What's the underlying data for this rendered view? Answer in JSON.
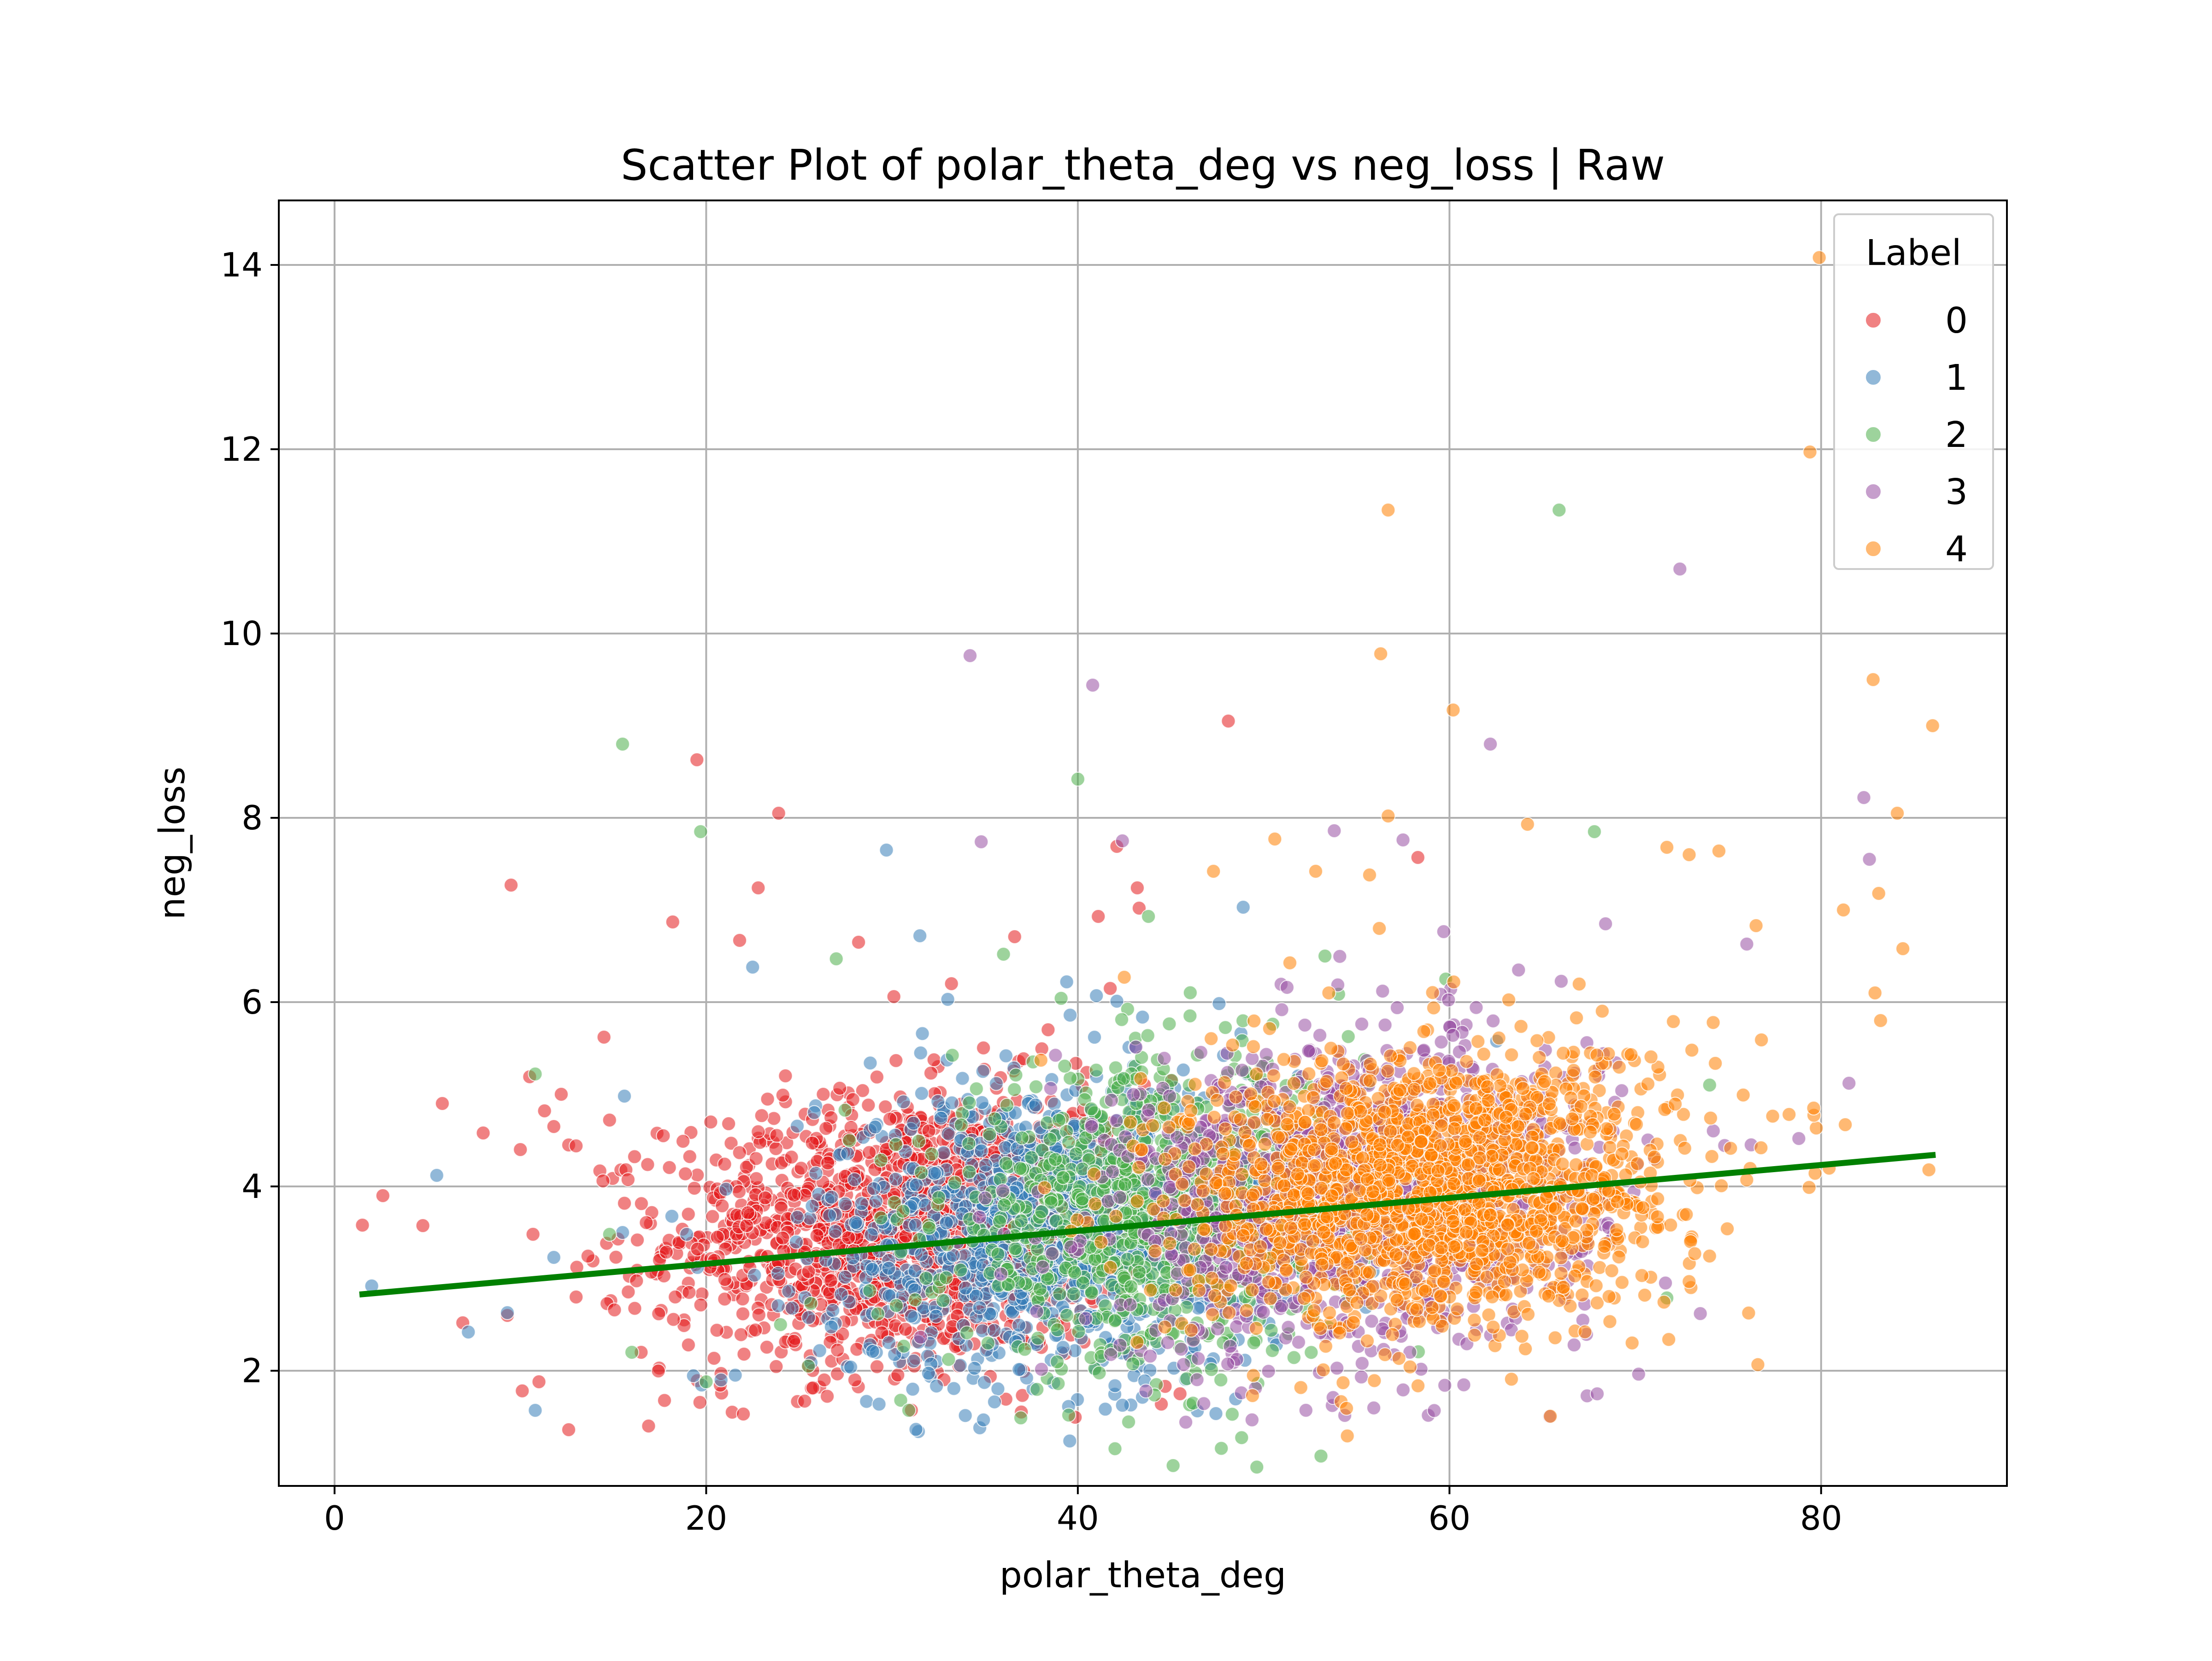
{
  "chart_data": {
    "type": "scatter",
    "title": "Scatter Plot of polar_theta_deg vs neg_loss | Raw",
    "xlabel": "polar_theta_deg",
    "ylabel": "neg_loss",
    "xlim": [
      -3,
      90
    ],
    "ylim": [
      0.75,
      14.7
    ],
    "xticks": [
      0,
      20,
      40,
      60,
      80
    ],
    "yticks": [
      2,
      4,
      6,
      8,
      10,
      12,
      14
    ],
    "xtick_labels": [
      "0",
      "20",
      "40",
      "60",
      "80"
    ],
    "ytick_labels": [
      "2",
      "4",
      "6",
      "8",
      "10",
      "12",
      "14"
    ],
    "grid": true,
    "legend": {
      "title": "Label",
      "placement": "top-right",
      "entries": [
        "0",
        "1",
        "2",
        "3",
        "4"
      ]
    },
    "series": [
      {
        "name": "0",
        "color": "#e41a1c",
        "cluster": {
          "x_mean": 31,
          "x_sd": 6.5,
          "y_mean": 3.55,
          "y_sd": 0.72,
          "n": 1500
        },
        "points": [
          [
            1.5,
            3.58
          ],
          [
            2.6,
            3.9
          ],
          [
            5.8,
            4.9
          ],
          [
            6.9,
            2.52
          ],
          [
            8,
            4.58
          ],
          [
            9.3,
            2.6
          ],
          [
            9.5,
            7.27
          ],
          [
            10,
            4.4
          ],
          [
            10.5,
            5.19
          ],
          [
            11,
            1.88
          ],
          [
            11.3,
            4.82
          ],
          [
            11.8,
            4.65
          ],
          [
            12.2,
            5.0
          ],
          [
            12.6,
            1.36
          ],
          [
            12.6,
            4.45
          ],
          [
            13,
            4.44
          ],
          [
            13,
            2.8
          ],
          [
            14.5,
            5.62
          ],
          [
            14.8,
            4.72
          ],
          [
            16.5,
            2.2
          ],
          [
            16.9,
            1.4
          ],
          [
            18.2,
            6.87
          ],
          [
            19.5,
            8.63
          ],
          [
            20.8,
            1.97
          ],
          [
            21.4,
            1.55
          ],
          [
            21.8,
            6.67
          ],
          [
            22,
            1.53
          ],
          [
            22.8,
            7.24
          ],
          [
            23.9,
            8.05
          ],
          [
            25.3,
            1.67
          ],
          [
            26.3,
            5.0
          ],
          [
            28,
            1.9
          ],
          [
            28.2,
            6.65
          ],
          [
            30.1,
            6.06
          ],
          [
            33.2,
            6.2
          ],
          [
            36.6,
            6.71
          ],
          [
            38.4,
            5.7
          ],
          [
            41.1,
            6.93
          ],
          [
            42.1,
            7.69
          ],
          [
            43.2,
            7.24
          ],
          [
            43.3,
            7.02
          ],
          [
            44.7,
            1.83
          ],
          [
            45.5,
            1.75
          ],
          [
            48.1,
            9.05
          ],
          [
            58.3,
            7.57
          ]
        ]
      },
      {
        "name": "1",
        "color": "#377eb8",
        "cluster": {
          "x_mean": 39,
          "x_sd": 6.5,
          "y_mean": 3.55,
          "y_sd": 0.8,
          "n": 1200
        },
        "points": [
          [
            2,
            2.92
          ],
          [
            5.5,
            4.12
          ],
          [
            7.2,
            2.42
          ],
          [
            9.3,
            2.63
          ],
          [
            10.8,
            1.57
          ],
          [
            11.8,
            3.23
          ],
          [
            15.5,
            3.5
          ],
          [
            15.6,
            4.98
          ],
          [
            20.8,
            1.9
          ],
          [
            22.5,
            6.38
          ],
          [
            29.7,
            7.65
          ],
          [
            31.5,
            6.72
          ],
          [
            33,
            6.03
          ],
          [
            38.7,
            1.87
          ],
          [
            39.4,
            6.22
          ],
          [
            41,
            6.07
          ],
          [
            42.1,
            6.01
          ],
          [
            48.9,
            7.03
          ],
          [
            43.6,
            1.89
          ]
        ]
      },
      {
        "name": "2",
        "color": "#4daf4a",
        "cluster": {
          "x_mean": 44,
          "x_sd": 5.5,
          "y_mean": 3.7,
          "y_sd": 0.8,
          "n": 900
        },
        "points": [
          [
            10.8,
            5.22
          ],
          [
            14.8,
            3.48
          ],
          [
            15.5,
            8.8
          ],
          [
            16,
            2.2
          ],
          [
            19.7,
            7.85
          ],
          [
            20,
            1.88
          ],
          [
            24,
            2.5
          ],
          [
            25.5,
            2.05
          ],
          [
            27,
            6.47
          ],
          [
            36,
            6.52
          ],
          [
            40,
            8.42
          ],
          [
            43.8,
            6.93
          ],
          [
            53.3,
            6.5
          ],
          [
            59.8,
            6.25
          ],
          [
            65.9,
            11.34
          ],
          [
            67.8,
            7.85
          ],
          [
            71.7,
            2.79
          ],
          [
            74,
            5.1
          ]
        ]
      },
      {
        "name": "3",
        "color": "#984ea3",
        "cluster": {
          "x_mean": 55,
          "x_sd": 6.5,
          "y_mean": 3.9,
          "y_sd": 0.85,
          "n": 1200
        },
        "points": [
          [
            34.2,
            9.76
          ],
          [
            34.8,
            7.74
          ],
          [
            40.8,
            9.44
          ],
          [
            42.4,
            7.75
          ],
          [
            48.8,
            1.76
          ],
          [
            53.8,
            7.86
          ],
          [
            57.5,
            7.76
          ],
          [
            62.2,
            8.8
          ],
          [
            68.4,
            6.85
          ],
          [
            72.4,
            10.7
          ],
          [
            73.5,
            2.62
          ],
          [
            76,
            6.63
          ],
          [
            78.8,
            4.52
          ],
          [
            81.5,
            5.12
          ],
          [
            82.3,
            8.22
          ],
          [
            82.6,
            7.55
          ],
          [
            55.3,
            2.08
          ],
          [
            53,
            1.98
          ]
        ]
      },
      {
        "name": "4",
        "color": "#ff7f00",
        "cluster": {
          "x_mean": 59,
          "x_sd": 6.5,
          "y_mean": 4.0,
          "y_sd": 0.75,
          "n": 1700
        },
        "points": [
          [
            79.9,
            14.08
          ],
          [
            79.4,
            11.97
          ],
          [
            56.7,
            11.34
          ],
          [
            56.3,
            9.78
          ],
          [
            60.2,
            9.17
          ],
          [
            82.8,
            9.5
          ],
          [
            86,
            9.0
          ],
          [
            56.7,
            8.02
          ],
          [
            64.2,
            7.93
          ],
          [
            71.7,
            7.68
          ],
          [
            72.9,
            7.6
          ],
          [
            74.5,
            7.64
          ],
          [
            84.1,
            8.05
          ],
          [
            81.2,
            7.0
          ],
          [
            83.1,
            7.18
          ],
          [
            82.9,
            6.1
          ],
          [
            84.4,
            6.58
          ],
          [
            83.2,
            5.8
          ],
          [
            76.5,
            6.83
          ],
          [
            81.3,
            4.67
          ],
          [
            85.8,
            4.18
          ],
          [
            79.6,
            4.85
          ],
          [
            47.3,
            7.42
          ],
          [
            50.6,
            7.77
          ],
          [
            52.8,
            7.42
          ],
          [
            55.7,
            7.38
          ],
          [
            49.4,
            1.73
          ],
          [
            42.5,
            6.27
          ],
          [
            73.2,
            3.27
          ]
        ]
      }
    ],
    "regression_line": {
      "color": "#008000",
      "x": [
        1.5,
        86
      ],
      "y": [
        2.83,
        4.34
      ]
    }
  }
}
